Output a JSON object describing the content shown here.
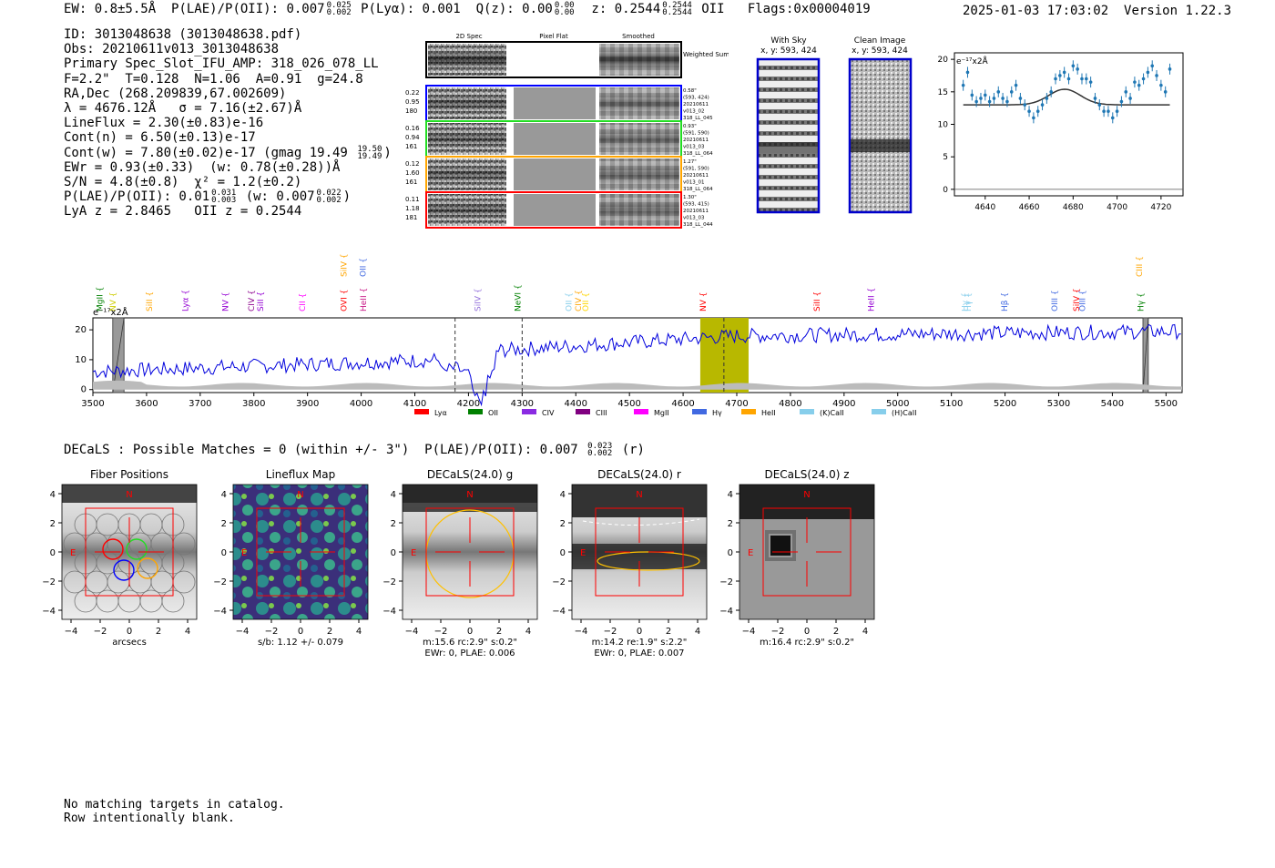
{
  "header": {
    "ew": "EW: 0.8±5.5Å",
    "plae_label": "P(LAE)/P(OII): 0.007",
    "plae_hi": "0.025",
    "plae_lo": "0.002",
    "plya": "P(Lyα): 0.001",
    "qz_label": "Q(z): 0.00",
    "qz_hi": "0.00",
    "qz_lo": "0.00",
    "z_label": "z: 0.2544",
    "z_hi": "0.2544",
    "z_lo": "0.2544",
    "z_line": "OII",
    "flags": "Flags:0x00004019",
    "datetime": "2025-01-03 17:03:02",
    "version": "Version 1.22.3"
  },
  "info": {
    "id": "ID: 3013048638 (3013048638.pdf)",
    "obs": "Obs: 20210611v013_3013048638",
    "primary": "Primary Spec_Slot_IFU_AMP: 318_026_078_LL",
    "params": "F=2.2\"  T=0.128  N=1.06  A=0.91  g=24.8",
    "radec": "RA,Dec (268.209839,67.002609)",
    "lambda": "λ = 4676.12Å   σ = 7.16(±2.67)Å",
    "lineflux": "LineFlux = 2.30(±0.83)e-16",
    "contn": "Cont(n) = 6.50(±0.13)e-17",
    "contw": "Cont(w) = 7.80(±0.02)e-17 (gmag 19.49",
    "gmag_hi": "19.50",
    "gmag_lo": "19.49",
    "ewr": "EWr = 0.93(±0.33)  (w: 0.78(±0.28))Å",
    "sn": "S/N = 4.8(±0.8)  χ² = 1.2(±0.2)",
    "plae2": "P(LAE)/P(OII): 0.01",
    "plae2_hi": "0.031",
    "plae2_lo": "0.003",
    "plae2_w": "(w: 0.007",
    "plae2_w_hi": "0.022",
    "plae2_w_lo": "0.002",
    "lyaz": "LyA z = 2.8465   OII z = 0.2544"
  },
  "cutouts": {
    "col_headers": [
      "2D Spec",
      "Pixel Flat",
      "Smoothed"
    ],
    "weighted_sum": "Weighted Sum",
    "rows": [
      {
        "left": [
          "0.22",
          "0.95",
          "180"
        ],
        "right": [
          "0.58\"",
          "(593, 424)",
          "20210611",
          "v013_02",
          "318_LL_045"
        ],
        "color": "#0000ff"
      },
      {
        "left": [
          "0.16",
          "0.94",
          "161"
        ],
        "right": [
          "0.93\"",
          "(591, 590)",
          "20210611",
          "v013_03",
          "318_LL_064"
        ],
        "color": "#22dd22"
      },
      {
        "left": [
          "0.12",
          "1.60",
          "161"
        ],
        "right": [
          "1.27\"",
          "(591, 590)",
          "20210611",
          "v013_01",
          "318_LL_064"
        ],
        "color": "#ffa500"
      },
      {
        "left": [
          "0.11",
          "1.18",
          "181"
        ],
        "right": [
          "1.30\"",
          "(593, 415)",
          "20210611",
          "v013_03",
          "318_LL_044"
        ],
        "color": "#ff0000"
      }
    ]
  },
  "sky": {
    "with_title": "With Sky",
    "with_sub": "x, y: 593, 424",
    "clean_title": "Clean Image",
    "clean_sub": "x, y: 593, 424"
  },
  "zoom_plot": {
    "unit_label": "e⁻¹⁷x2Å",
    "x_ticks": [
      "4640",
      "4660",
      "4680",
      "4700",
      "4720"
    ],
    "y_ticks": [
      "0",
      "5",
      "10",
      "15",
      "20"
    ],
    "chart_data": {
      "type": "scatter",
      "x_range": [
        4626,
        4730
      ],
      "y_range": [
        -1,
        21
      ],
      "x": [
        4630,
        4632,
        4634,
        4636,
        4638,
        4640,
        4642,
        4644,
        4646,
        4648,
        4650,
        4652,
        4654,
        4656,
        4658,
        4660,
        4662,
        4664,
        4666,
        4668,
        4670,
        4672,
        4674,
        4676,
        4678,
        4680,
        4682,
        4684,
        4686,
        4688,
        4690,
        4692,
        4694,
        4696,
        4698,
        4700,
        4702,
        4704,
        4706,
        4708,
        4710,
        4712,
        4714,
        4716,
        4718,
        4720,
        4722,
        4724
      ],
      "y": [
        16,
        18,
        14.5,
        13.5,
        14,
        14.5,
        13.5,
        14,
        15,
        14,
        13.5,
        15,
        16,
        14,
        13,
        12,
        11,
        12,
        13,
        14,
        15,
        17,
        17.5,
        18,
        17,
        19,
        18.5,
        17,
        17,
        16.5,
        14,
        13,
        12,
        12,
        11,
        12,
        13.5,
        15,
        14,
        16.5,
        16,
        17,
        18,
        19,
        17.5,
        16,
        15,
        18.5
      ]
    }
  },
  "spectrum": {
    "unit_label": "e⁻¹⁷x2Å",
    "x_ticks": [
      "3500",
      "3600",
      "3700",
      "3800",
      "3900",
      "4000",
      "4100",
      "4200",
      "4300",
      "4400",
      "4500",
      "4600",
      "4700",
      "4800",
      "4900",
      "5000",
      "5100",
      "5200",
      "5300",
      "5400",
      "5500"
    ],
    "y_ticks": [
      "0",
      "10",
      "20"
    ],
    "lines": [
      {
        "label": "MgII",
        "x": 3513,
        "color": "#008000",
        "row": 1
      },
      {
        "label": "NV",
        "x": 3537,
        "color": "#cccc00",
        "row": 1
      },
      {
        "label": "SiII",
        "x": 3605,
        "color": "#ffa500",
        "row": 1
      },
      {
        "label": "Lyα",
        "x": 3672,
        "color": "#9400d3",
        "row": 1
      },
      {
        "label": "NV",
        "x": 3747,
        "color": "#9400d3",
        "row": 1
      },
      {
        "label": "CIV",
        "x": 3795,
        "color": "#8b008b",
        "row": 1
      },
      {
        "label": "SiII",
        "x": 3812,
        "color": "#9400d3",
        "row": 1
      },
      {
        "label": "CII",
        "x": 3890,
        "color": "#ff00ff",
        "row": 1
      },
      {
        "label": "OVI",
        "x": 3968,
        "color": "#ff0000",
        "row": 1
      },
      {
        "label": "SiIV",
        "x": 3968,
        "color": "#ffa500",
        "row": 0
      },
      {
        "label": "OII",
        "x": 4003,
        "color": "#4169e1",
        "row": 0
      },
      {
        "label": "HeII",
        "x": 4004,
        "color": "#c71585",
        "row": 1
      },
      {
        "label": "SiIV",
        "x": 4217,
        "color": "#9370db",
        "row": 1
      },
      {
        "label": "NeVI",
        "x": 4292,
        "color": "#008000",
        "row": 1
      },
      {
        "label": "OII",
        "x": 4387,
        "color": "#87ceeb",
        "row": 1
      },
      {
        "label": "CIV",
        "x": 4405,
        "color": "#ffa500",
        "row": 1
      },
      {
        "label": "OII",
        "x": 4418,
        "color": "#ffd700",
        "row": 1
      },
      {
        "label": "NV",
        "x": 4637,
        "color": "#ff0000",
        "row": 1
      },
      {
        "label": "SiII",
        "x": 4849,
        "color": "#ff0000",
        "row": 1
      },
      {
        "label": "HeII",
        "x": 4950,
        "color": "#9400d3",
        "row": 1
      },
      {
        "label": "Hγ",
        "x": 5125,
        "color": "#87ceeb",
        "row": 1
      },
      {
        "label": "Hγ",
        "x": 5131,
        "color": "#87ceeb",
        "row": 1
      },
      {
        "label": "Hβ",
        "x": 5199,
        "color": "#4169e1",
        "row": 1
      },
      {
        "label": "OIII",
        "x": 5292,
        "color": "#4169e1",
        "row": 1
      },
      {
        "label": "SiIV",
        "x": 5333,
        "color": "#ff0000",
        "row": 1
      },
      {
        "label": "OIII",
        "x": 5344,
        "color": "#4169e1",
        "row": 1
      },
      {
        "label": "CIII",
        "x": 5450,
        "color": "#ffa500",
        "row": 0
      },
      {
        "label": "Hγ",
        "x": 5453,
        "color": "#008000",
        "row": 1
      }
    ],
    "legend": [
      {
        "label": "Lyα",
        "color": "#ff0000"
      },
      {
        "label": "OII",
        "color": "#008000"
      },
      {
        "label": "CIV",
        "color": "#8a2be2"
      },
      {
        "label": "CIII",
        "color": "#800080"
      },
      {
        "label": "MgII",
        "color": "#ff00ff"
      },
      {
        "label": "Hγ",
        "color": "#4169e1"
      },
      {
        "label": "HeII",
        "color": "#ffa500"
      },
      {
        "label": "(K)CaII",
        "color": "#87ceeb"
      },
      {
        "label": "(H)CaII",
        "color": "#87ceeb"
      }
    ],
    "chart_data": {
      "type": "line",
      "x_range": [
        3500,
        5530
      ],
      "y_range": [
        -1,
        24
      ],
      "highlight_band": [
        4632,
        4722
      ],
      "dashed_lines": [
        4175,
        4300,
        4676
      ],
      "masked_bands": [
        [
          3537,
          3558
        ],
        [
          5457,
          5467
        ]
      ]
    }
  },
  "decals": {
    "summary": "DECaLS : Possible Matches = 0 (within +/- 3\")  P(LAE)/P(OII): 0.007",
    "plae_hi": "0.023",
    "plae_lo": "0.002",
    "band": "(r)",
    "panels": [
      {
        "title": "Fiber Positions",
        "caption1": "arcsecs",
        "caption2": ""
      },
      {
        "title": "Lineflux Map",
        "caption1": "s/b: 1.12 +/- 0.079",
        "caption2": ""
      },
      {
        "title": "DECaLS(24.0) g",
        "caption1": "m:15.6 rc:2.9\"  s:0.2\"",
        "caption2": "EWr: 0, PLAE: 0.006"
      },
      {
        "title": "DECaLS(24.0) r",
        "caption1": "m:14.2  re:1.9\"  s:2.2\"",
        "caption2": "EWr: 0, PLAE: 0.007"
      },
      {
        "title": "DECaLS(24.0) z",
        "caption1": "m:16.4 rc:2.9\"  s:0.2\"",
        "caption2": ""
      }
    ],
    "ticks": [
      "4",
      "2",
      "0",
      "−2",
      "−4"
    ],
    "xticks": [
      "−4",
      "−2",
      "0",
      "2",
      "4"
    ],
    "compass_n": "N",
    "compass_e": "E"
  },
  "footer": {
    "line1": "No matching targets in catalog.",
    "line2": "Row intentionally blank."
  }
}
